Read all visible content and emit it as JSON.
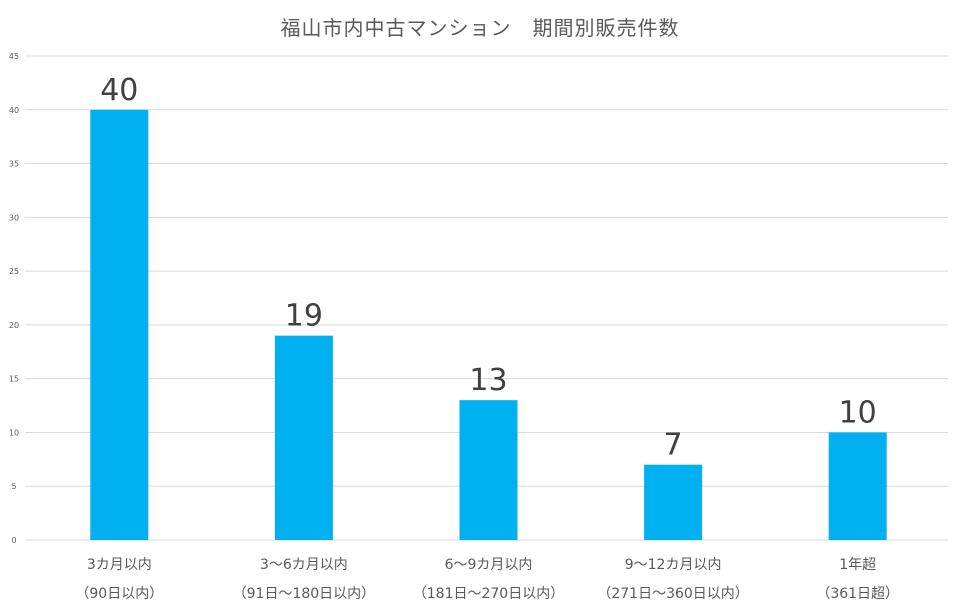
{
  "chart_data": {
    "type": "bar",
    "title": "福山市内中古マンション　期間別販売件数",
    "categories": [
      {
        "line1": "3カ月以内",
        "line2": "（90日以内）"
      },
      {
        "line1": "3～6カ月以内",
        "line2": "（91日～180日以内）"
      },
      {
        "line1": "6～9カ月以内",
        "line2": "（181日～270日以内）"
      },
      {
        "line1": "9～12カ月以内",
        "line2": "（271日～360日以内）"
      },
      {
        "line1": "1年超",
        "line2": "（361日超）"
      }
    ],
    "values": [
      40,
      19,
      13,
      7,
      10
    ],
    "ylim": [
      0,
      45
    ],
    "yticks": [
      0,
      5,
      10,
      15,
      20,
      25,
      30,
      35,
      40,
      45
    ],
    "grid": true,
    "bar_color": "#00B0F0",
    "gridline_color": "#D9D9D9"
  }
}
